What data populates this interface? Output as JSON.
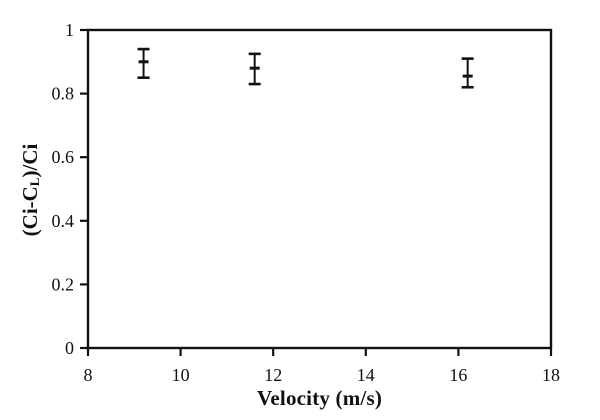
{
  "chart_data": {
    "type": "scatter",
    "title": "",
    "xlabel": "Velocity (m/s)",
    "ylabel": {
      "prefix": "(Ci-C",
      "subscript": "L",
      "suffix": ")/Ci",
      "plain_text": "(Ci-CL)/Ci"
    },
    "xlim": [
      8,
      18
    ],
    "ylim": [
      0,
      1
    ],
    "xtick_values": [
      8,
      10,
      12,
      14,
      16,
      18
    ],
    "xtick_labels": [
      "8",
      "10",
      "12",
      "14",
      "16",
      "18"
    ],
    "ytick_values": [
      0,
      0.2,
      0.4,
      0.6,
      0.8,
      1
    ],
    "ytick_labels": [
      "0",
      "0.2",
      "0.4",
      "0.6",
      "0.8",
      "1"
    ],
    "grid": false,
    "legend_position": "none",
    "marker_style": "horizontal-dash",
    "error_bars": true,
    "colors": {
      "axis": "#111111",
      "data": "#111111",
      "background": "#ffffff"
    },
    "series": [
      {
        "points": [
          {
            "x": 9.2,
            "y": 0.9,
            "y_upper": 0.94,
            "y_lower": 0.85
          },
          {
            "x": 11.6,
            "y": 0.88,
            "y_upper": 0.925,
            "y_lower": 0.83
          },
          {
            "x": 16.2,
            "y": 0.855,
            "y_upper": 0.91,
            "y_lower": 0.82
          }
        ]
      }
    ]
  }
}
